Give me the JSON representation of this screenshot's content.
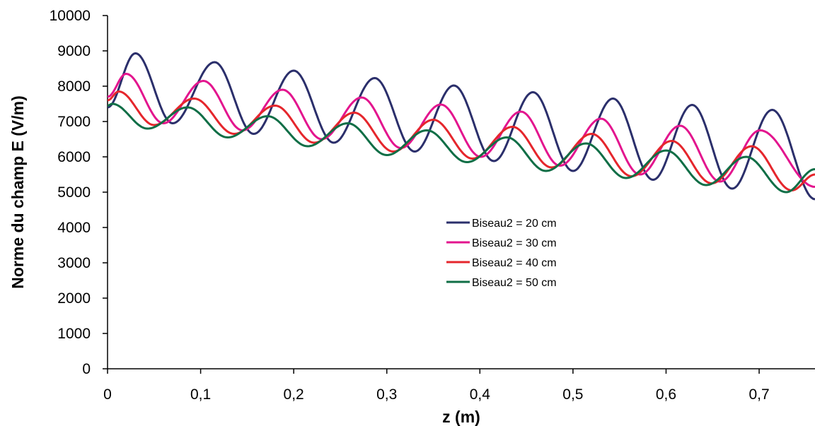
{
  "chart_data": {
    "type": "line",
    "title": "",
    "xlabel": "z (m)",
    "ylabel": "Norme du champ E (V/m)",
    "xlim": [
      0,
      0.76
    ],
    "ylim": [
      0,
      10000
    ],
    "x_ticks": [
      "0",
      "0,1",
      "0,2",
      "0,3",
      "0,4",
      "0,5",
      "0,6",
      "0,7"
    ],
    "x_tick_values": [
      0,
      0.1,
      0.2,
      0.3,
      0.4,
      0.5,
      0.6,
      0.7
    ],
    "y_ticks": [
      "0",
      "1000",
      "2000",
      "3000",
      "4000",
      "5000",
      "6000",
      "7000",
      "8000",
      "9000",
      "10000"
    ],
    "y_tick_values": [
      0,
      1000,
      2000,
      3000,
      4000,
      5000,
      6000,
      7000,
      8000,
      9000,
      10000
    ],
    "grid": false,
    "legend_position": "center-right",
    "series": [
      {
        "name": "Biseau2 = 20 cm",
        "color": "#2b2f6b",
        "x": [
          0,
          0.03,
          0.07,
          0.115,
          0.157,
          0.2,
          0.243,
          0.287,
          0.33,
          0.372,
          0.415,
          0.457,
          0.5,
          0.543,
          0.586,
          0.628,
          0.671,
          0.714,
          0.76
        ],
        "y": [
          7400,
          8930,
          6950,
          8680,
          6650,
          8440,
          6400,
          8230,
          6150,
          8020,
          5880,
          7830,
          5600,
          7650,
          5350,
          7470,
          5100,
          7330,
          4800
        ]
      },
      {
        "name": "Biseau2 = 30 cm",
        "color": "#e3158e",
        "x": [
          0,
          0.02,
          0.06,
          0.103,
          0.145,
          0.188,
          0.23,
          0.273,
          0.315,
          0.358,
          0.401,
          0.444,
          0.486,
          0.53,
          0.572,
          0.615,
          0.658,
          0.701,
          0.76
        ],
        "y": [
          7700,
          8350,
          6950,
          8150,
          6750,
          7900,
          6500,
          7680,
          6250,
          7480,
          6000,
          7280,
          5750,
          7080,
          5500,
          6880,
          5300,
          6750,
          5150
        ]
      },
      {
        "name": "Biseau2 = 40 cm",
        "color": "#e5262c",
        "x": [
          0,
          0.012,
          0.05,
          0.093,
          0.136,
          0.18,
          0.222,
          0.265,
          0.307,
          0.35,
          0.392,
          0.435,
          0.477,
          0.52,
          0.563,
          0.606,
          0.649,
          0.692,
          0.735,
          0.76
        ],
        "y": [
          7600,
          7850,
          6900,
          7650,
          6650,
          7450,
          6400,
          7250,
          6150,
          7050,
          5950,
          6850,
          5700,
          6650,
          5450,
          6450,
          5250,
          6300,
          5050,
          5500
        ]
      },
      {
        "name": "Biseau2 = 50 cm",
        "color": "#0f6e46",
        "x": [
          0,
          0.005,
          0.043,
          0.086,
          0.129,
          0.172,
          0.215,
          0.258,
          0.3,
          0.343,
          0.386,
          0.429,
          0.471,
          0.514,
          0.557,
          0.6,
          0.643,
          0.686,
          0.729,
          0.76
        ],
        "y": [
          7450,
          7500,
          6800,
          7400,
          6550,
          7150,
          6300,
          6950,
          6050,
          6750,
          5850,
          6550,
          5600,
          6380,
          5400,
          6180,
          5200,
          6000,
          5000,
          5650
        ]
      }
    ]
  }
}
